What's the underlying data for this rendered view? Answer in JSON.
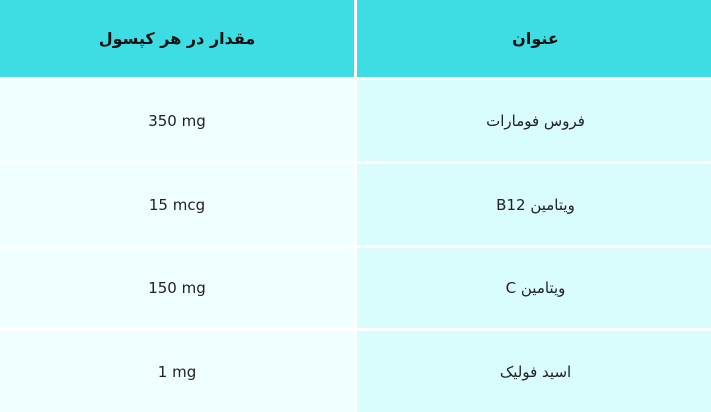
{
  "table": {
    "headers": [
      "مقدار در هر کپسول",
      "عنوان"
    ],
    "rows": [
      {
        "amount": "350 mg",
        "title": "فروس فومارات"
      },
      {
        "amount": "15 mcg",
        "title": "ویتامین B12"
      },
      {
        "amount": "150 mg",
        "title": "ویتامین C"
      },
      {
        "amount": "1 mg",
        "title": "اسید فولیک"
      }
    ]
  },
  "colors": {
    "header": "#3edde3",
    "left_cell": "#effeff",
    "right_cell": "#d9fcfd"
  }
}
